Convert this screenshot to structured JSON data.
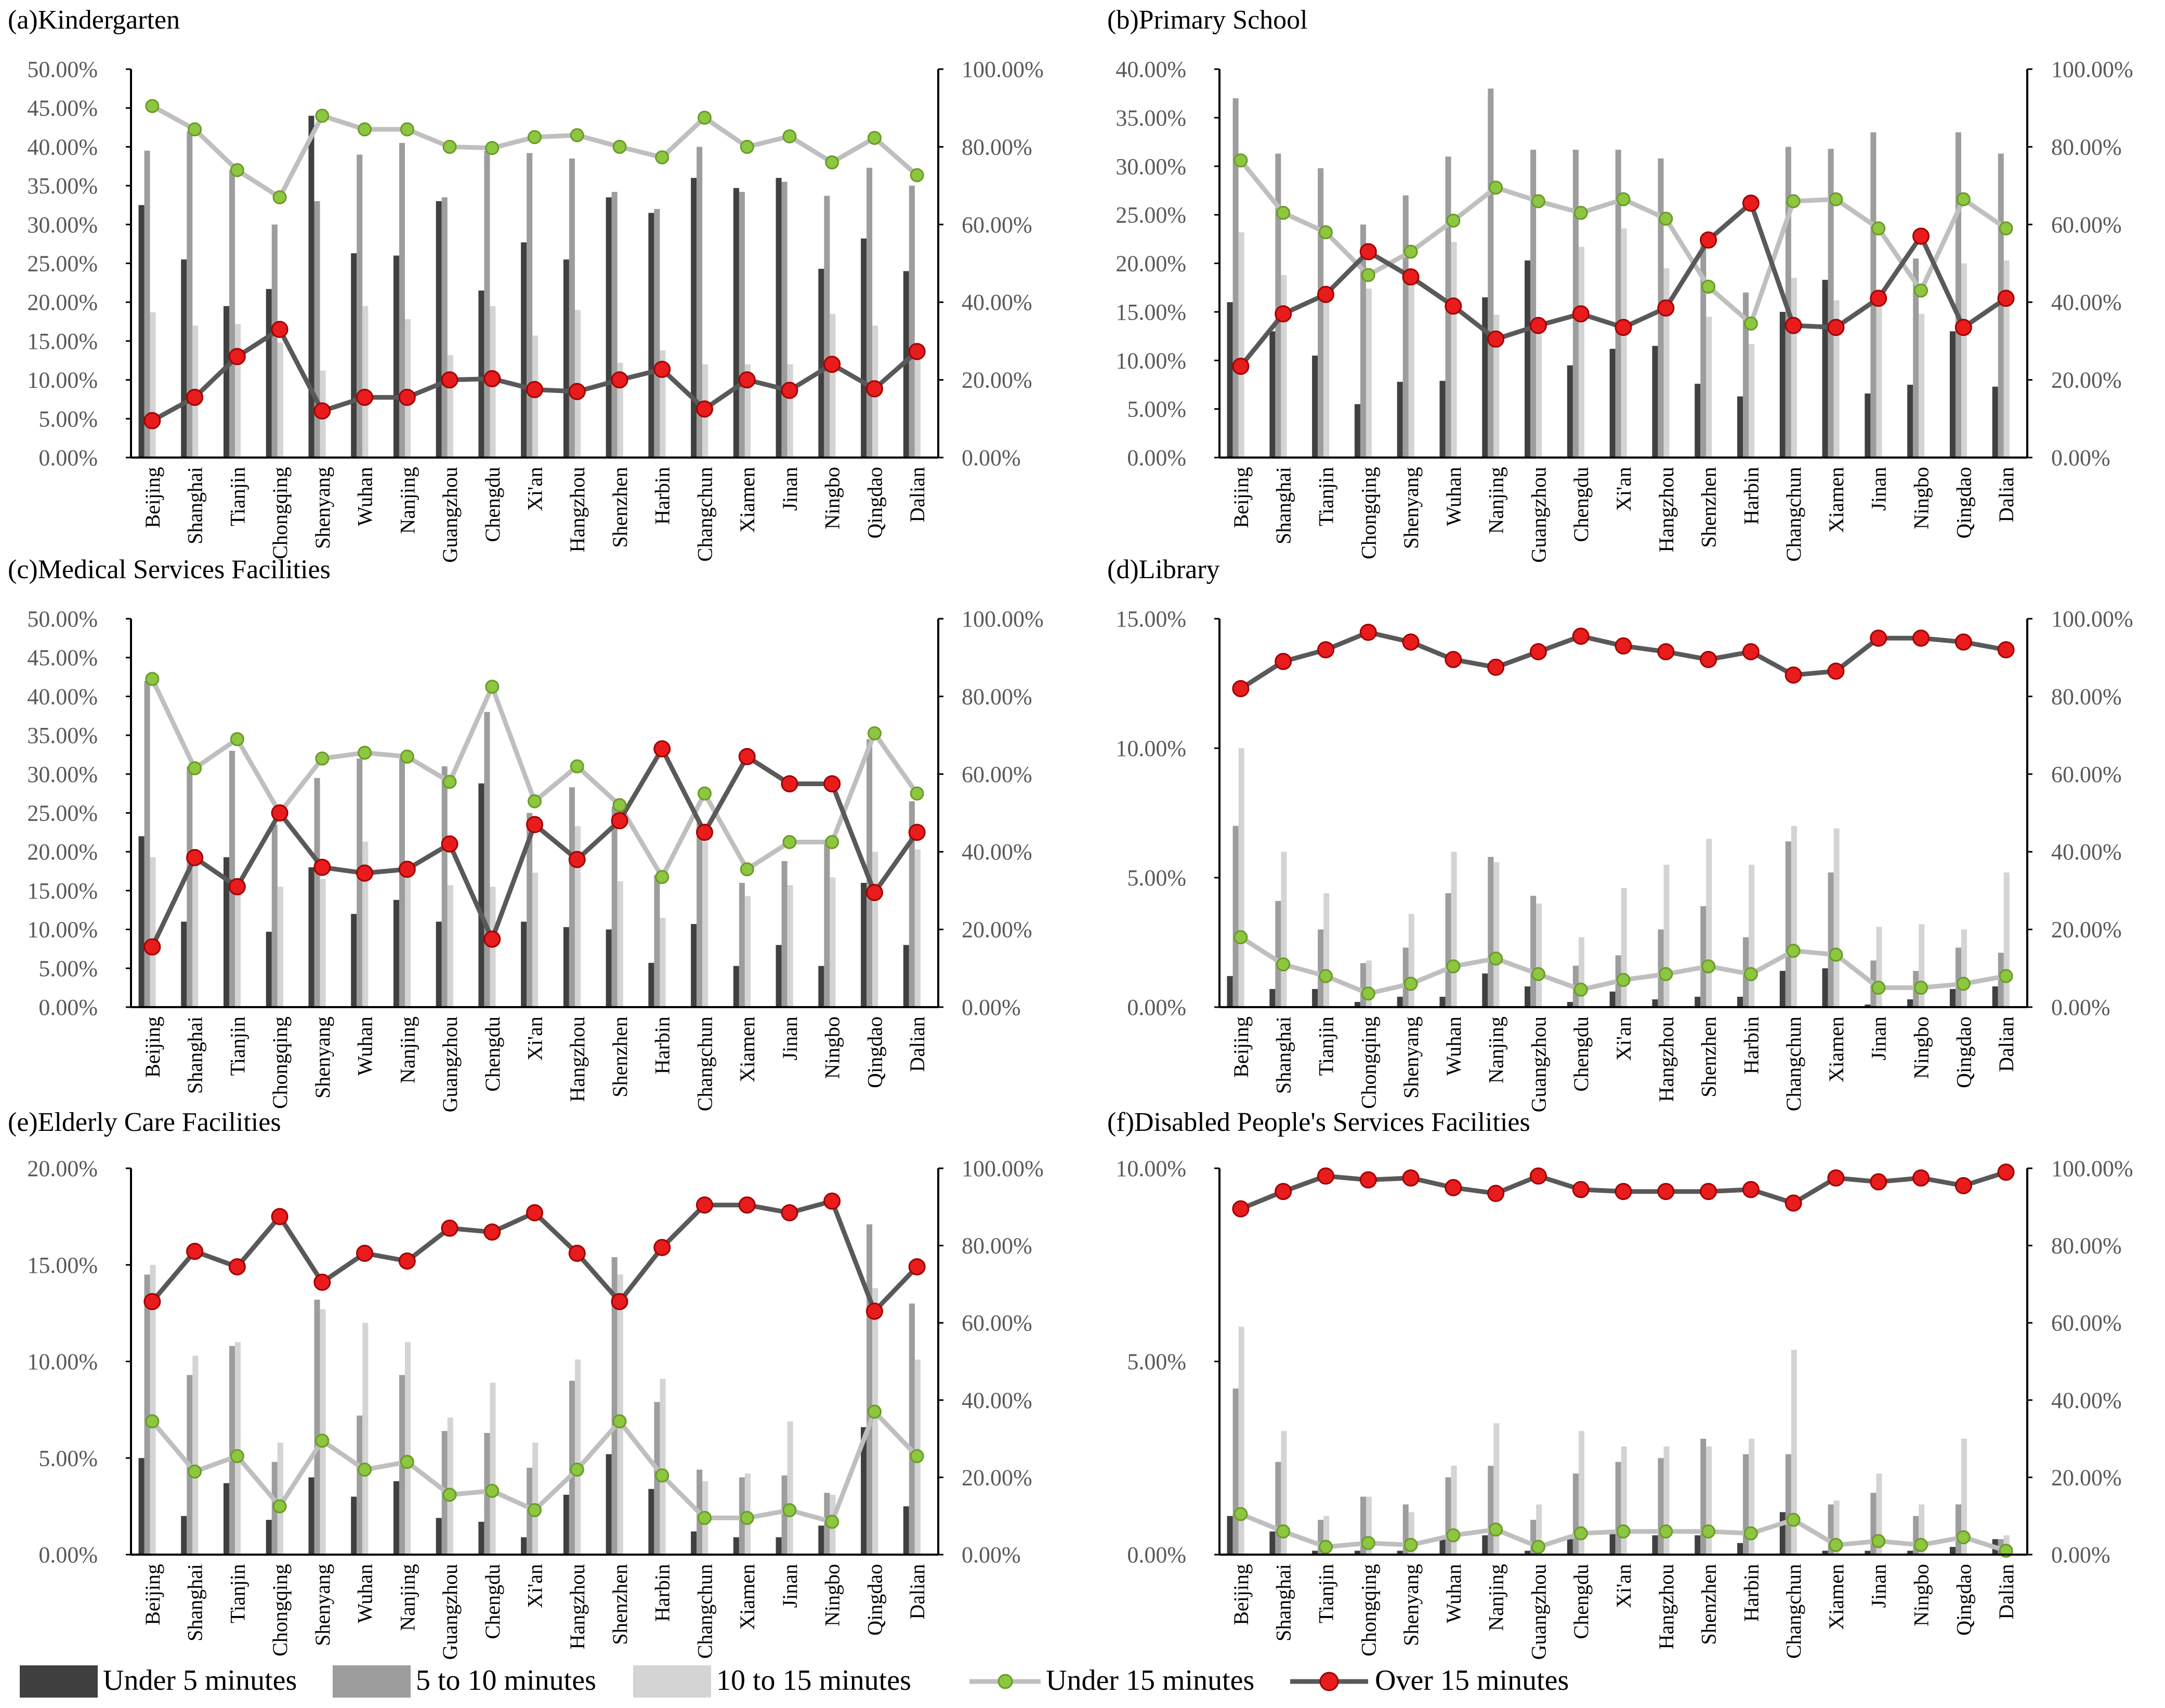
{
  "categories": [
    "Beijing",
    "Shanghai",
    "Tianjin",
    "Chongqing",
    "Shenyang",
    "Wuhan",
    "Nanjing",
    "Guangzhou",
    "Chengdu",
    "Xi'an",
    "Hangzhou",
    "Shenzhen",
    "Harbin",
    "Changchun",
    "Xiamen",
    "Jinan",
    "Ningbo",
    "Qingdao",
    "Dalian"
  ],
  "legend": {
    "under5": "Under 5 minutes",
    "five10": "5 to 10 minutes",
    "ten15": "10 to 15 minutes",
    "under15": "Under 15 minutes",
    "over15": "Over 15 minutes"
  },
  "colors": {
    "under5": "#404040",
    "five10": "#9d9d9d",
    "ten15": "#d4d4d4",
    "under15_line": "#bfbfbf",
    "under15_marker": "#8dc63f",
    "over15_line": "#595959",
    "over15_marker": "#e81c1c",
    "axis": "#000000",
    "tick_text": "#595959"
  },
  "chart_data": [
    {
      "type": "bar",
      "title": "(a)Kindergarten",
      "left_ylim": [
        0,
        0.5
      ],
      "left_ticks": [
        "0.00%",
        "5.00%",
        "10.00%",
        "15.00%",
        "20.00%",
        "25.00%",
        "30.00%",
        "35.00%",
        "40.00%",
        "45.00%",
        "50.00%"
      ],
      "right_ylim": [
        0,
        1.0
      ],
      "right_ticks": [
        "0.00%",
        "20.00%",
        "40.00%",
        "60.00%",
        "80.00%",
        "100.00%"
      ],
      "series": [
        {
          "name": "Under 5 minutes",
          "axis": "left",
          "values": [
            0.325,
            0.255,
            0.195,
            0.217,
            0.44,
            0.263,
            0.26,
            0.33,
            0.215,
            0.277,
            0.255,
            0.335,
            0.315,
            0.36,
            0.347,
            0.36,
            0.243,
            0.282,
            0.24
          ]
        },
        {
          "name": "5 to 10 minutes",
          "axis": "left",
          "values": [
            0.395,
            0.42,
            0.37,
            0.3,
            0.33,
            0.39,
            0.405,
            0.335,
            0.395,
            0.392,
            0.385,
            0.342,
            0.32,
            0.4,
            0.342,
            0.355,
            0.337,
            0.373,
            0.35
          ]
        },
        {
          "name": "10 to 15 minutes",
          "axis": "left",
          "values": [
            0.187,
            0.17,
            0.172,
            0.148,
            0.112,
            0.195,
            0.178,
            0.132,
            0.195,
            0.157,
            0.19,
            0.122,
            0.138,
            0.12,
            0.12,
            0.12,
            0.185,
            0.17,
            0.145
          ]
        },
        {
          "name": "Under 15 minutes",
          "axis": "right",
          "values": [
            0.905,
            0.845,
            0.74,
            0.67,
            0.88,
            0.845,
            0.845,
            0.8,
            0.797,
            0.825,
            0.83,
            0.8,
            0.773,
            0.875,
            0.8,
            0.827,
            0.76,
            0.823,
            0.727
          ]
        },
        {
          "name": "Over 15 minutes",
          "axis": "right",
          "values": [
            0.095,
            0.155,
            0.26,
            0.33,
            0.12,
            0.155,
            0.155,
            0.2,
            0.203,
            0.175,
            0.17,
            0.2,
            0.227,
            0.125,
            0.2,
            0.173,
            0.24,
            0.177,
            0.273
          ]
        }
      ]
    },
    {
      "type": "bar",
      "title": "(b)Primary School",
      "left_ylim": [
        0,
        0.4
      ],
      "left_ticks": [
        "0.00%",
        "5.00%",
        "10.00%",
        "15.00%",
        "20.00%",
        "25.00%",
        "30.00%",
        "35.00%",
        "40.00%"
      ],
      "right_ylim": [
        0,
        1.0
      ],
      "right_ticks": [
        "0.00%",
        "20.00%",
        "40.00%",
        "60.00%",
        "80.00%",
        "100.00%"
      ],
      "series": [
        {
          "name": "Under 5 minutes",
          "axis": "left",
          "values": [
            0.16,
            0.13,
            0.105,
            0.055,
            0.078,
            0.079,
            0.165,
            0.203,
            0.095,
            0.112,
            0.115,
            0.076,
            0.063,
            0.15,
            0.183,
            0.066,
            0.075,
            0.13,
            0.073
          ]
        },
        {
          "name": "5 to 10 minutes",
          "axis": "left",
          "values": [
            0.37,
            0.313,
            0.298,
            0.24,
            0.27,
            0.31,
            0.38,
            0.317,
            0.317,
            0.317,
            0.308,
            0.22,
            0.17,
            0.32,
            0.318,
            0.335,
            0.205,
            0.335,
            0.313
          ]
        },
        {
          "name": "10 to 15 minutes",
          "axis": "left",
          "values": [
            0.232,
            0.188,
            0.175,
            0.174,
            0.18,
            0.222,
            0.147,
            0.138,
            0.217,
            0.236,
            0.195,
            0.145,
            0.117,
            0.185,
            0.162,
            0.17,
            0.148,
            0.2,
            0.203
          ]
        },
        {
          "name": "Under 15 minutes",
          "axis": "right",
          "values": [
            0.765,
            0.63,
            0.58,
            0.47,
            0.53,
            0.61,
            0.695,
            0.66,
            0.63,
            0.665,
            0.615,
            0.44,
            0.345,
            0.66,
            0.665,
            0.59,
            0.43,
            0.665,
            0.59
          ]
        },
        {
          "name": "Over 15 minutes",
          "axis": "right",
          "values": [
            0.235,
            0.37,
            0.42,
            0.53,
            0.465,
            0.39,
            0.305,
            0.34,
            0.37,
            0.335,
            0.385,
            0.56,
            0.655,
            0.34,
            0.335,
            0.41,
            0.57,
            0.335,
            0.41
          ]
        }
      ]
    },
    {
      "type": "bar",
      "title": "(c)Medical Services Facilities",
      "left_ylim": [
        0,
        0.5
      ],
      "left_ticks": [
        "0.00%",
        "5.00%",
        "10.00%",
        "15.00%",
        "20.00%",
        "25.00%",
        "30.00%",
        "35.00%",
        "40.00%",
        "45.00%",
        "50.00%"
      ],
      "right_ylim": [
        0,
        1.0
      ],
      "right_ticks": [
        "0.00%",
        "20.00%",
        "40.00%",
        "60.00%",
        "80.00%",
        "100.00%"
      ],
      "series": [
        {
          "name": "Under 5 minutes",
          "axis": "left",
          "values": [
            0.22,
            0.11,
            0.193,
            0.097,
            0.18,
            0.12,
            0.138,
            0.11,
            0.288,
            0.11,
            0.103,
            0.1,
            0.057,
            0.107,
            0.053,
            0.08,
            0.053,
            0.16,
            0.08
          ]
        },
        {
          "name": "5 to 10 minutes",
          "axis": "left",
          "values": [
            0.42,
            0.31,
            0.33,
            0.235,
            0.295,
            0.32,
            0.32,
            0.31,
            0.38,
            0.25,
            0.283,
            0.258,
            0.17,
            0.238,
            0.16,
            0.188,
            0.215,
            0.345,
            0.265
          ]
        },
        {
          "name": "10 to 15 minutes",
          "axis": "left",
          "values": [
            0.193,
            0.183,
            0.165,
            0.155,
            0.165,
            0.213,
            0.18,
            0.157,
            0.155,
            0.173,
            0.233,
            0.162,
            0.115,
            0.213,
            0.143,
            0.157,
            0.167,
            0.2,
            0.203
          ]
        },
        {
          "name": "Under 15 minutes",
          "axis": "right",
          "values": [
            0.845,
            0.615,
            0.69,
            0.5,
            0.64,
            0.655,
            0.645,
            0.58,
            0.825,
            0.53,
            0.62,
            0.52,
            0.335,
            0.55,
            0.355,
            0.425,
            0.425,
            0.705,
            0.55
          ]
        },
        {
          "name": "Over 15 minutes",
          "axis": "right",
          "values": [
            0.155,
            0.385,
            0.31,
            0.5,
            0.36,
            0.345,
            0.355,
            0.42,
            0.175,
            0.47,
            0.38,
            0.48,
            0.665,
            0.45,
            0.645,
            0.575,
            0.575,
            0.295,
            0.45
          ]
        }
      ]
    },
    {
      "type": "bar",
      "title": "(d)Library",
      "left_ylim": [
        0,
        0.15
      ],
      "left_ticks": [
        "0.00%",
        "5.00%",
        "10.00%",
        "15.00%"
      ],
      "right_ylim": [
        0,
        1.0
      ],
      "right_ticks": [
        "0.00%",
        "20.00%",
        "40.00%",
        "60.00%",
        "80.00%",
        "100.00%"
      ],
      "series": [
        {
          "name": "Under 5 minutes",
          "axis": "left",
          "values": [
            0.012,
            0.007,
            0.007,
            0.002,
            0.004,
            0.004,
            0.013,
            0.008,
            0.002,
            0.006,
            0.003,
            0.004,
            0.004,
            0.014,
            0.015,
            0.001,
            0.003,
            0.007,
            0.008
          ]
        },
        {
          "name": "5 to 10 minutes",
          "axis": "left",
          "values": [
            0.07,
            0.041,
            0.03,
            0.017,
            0.023,
            0.044,
            0.058,
            0.043,
            0.016,
            0.02,
            0.03,
            0.039,
            0.027,
            0.064,
            0.052,
            0.018,
            0.014,
            0.023,
            0.021
          ]
        },
        {
          "name": "10 to 15 minutes",
          "axis": "left",
          "values": [
            0.1,
            0.06,
            0.044,
            0.018,
            0.036,
            0.06,
            0.056,
            0.04,
            0.027,
            0.046,
            0.055,
            0.065,
            0.055,
            0.07,
            0.069,
            0.031,
            0.032,
            0.03,
            0.052
          ]
        },
        {
          "name": "Under 15 minutes",
          "axis": "right",
          "values": [
            0.18,
            0.11,
            0.08,
            0.035,
            0.06,
            0.105,
            0.125,
            0.085,
            0.045,
            0.07,
            0.085,
            0.105,
            0.085,
            0.145,
            0.135,
            0.05,
            0.05,
            0.06,
            0.08
          ]
        },
        {
          "name": "Over 15 minutes",
          "axis": "right",
          "values": [
            0.82,
            0.89,
            0.92,
            0.965,
            0.94,
            0.895,
            0.875,
            0.915,
            0.955,
            0.93,
            0.915,
            0.895,
            0.915,
            0.855,
            0.865,
            0.95,
            0.95,
            0.94,
            0.92
          ]
        }
      ]
    },
    {
      "type": "bar",
      "title": "(e)Elderly Care Facilities",
      "left_ylim": [
        0,
        0.2
      ],
      "left_ticks": [
        "0.00%",
        "5.00%",
        "10.00%",
        "15.00%",
        "20.00%"
      ],
      "right_ylim": [
        0,
        1.0
      ],
      "right_ticks": [
        "0.00%",
        "20.00%",
        "40.00%",
        "60.00%",
        "80.00%",
        "100.00%"
      ],
      "series": [
        {
          "name": "Under 5 minutes",
          "axis": "left",
          "values": [
            0.05,
            0.02,
            0.037,
            0.018,
            0.04,
            0.03,
            0.038,
            0.019,
            0.017,
            0.009,
            0.031,
            0.052,
            0.034,
            0.012,
            0.009,
            0.009,
            0.015,
            0.066,
            0.025
          ]
        },
        {
          "name": "5 to 10 minutes",
          "axis": "left",
          "values": [
            0.145,
            0.093,
            0.108,
            0.048,
            0.132,
            0.072,
            0.093,
            0.064,
            0.063,
            0.045,
            0.09,
            0.154,
            0.079,
            0.044,
            0.04,
            0.041,
            0.032,
            0.171,
            0.13
          ]
        },
        {
          "name": "10 to 15 minutes",
          "axis": "left",
          "values": [
            0.15,
            0.103,
            0.11,
            0.058,
            0.127,
            0.12,
            0.11,
            0.071,
            0.089,
            0.058,
            0.101,
            0.145,
            0.091,
            0.038,
            0.042,
            0.069,
            0.031,
            0.138,
            0.101
          ]
        },
        {
          "name": "Under 15 minutes",
          "axis": "right",
          "values": [
            0.345,
            0.215,
            0.255,
            0.125,
            0.295,
            0.22,
            0.24,
            0.155,
            0.165,
            0.115,
            0.22,
            0.345,
            0.205,
            0.095,
            0.095,
            0.115,
            0.085,
            0.37,
            0.255
          ]
        },
        {
          "name": "Over 15 minutes",
          "axis": "right",
          "values": [
            0.655,
            0.785,
            0.745,
            0.875,
            0.705,
            0.78,
            0.76,
            0.845,
            0.835,
            0.885,
            0.78,
            0.655,
            0.795,
            0.905,
            0.905,
            0.885,
            0.915,
            0.63,
            0.745
          ]
        }
      ]
    },
    {
      "type": "bar",
      "title": "(f)Disabled People's Services Facilities",
      "left_ylim": [
        0,
        0.1
      ],
      "left_ticks": [
        "0.00%",
        "5.00%",
        "10.00%"
      ],
      "right_ylim": [
        0,
        1.0
      ],
      "right_ticks": [
        "0.00%",
        "20.00%",
        "40.00%",
        "60.00%",
        "80.00%",
        "100.00%"
      ],
      "series": [
        {
          "name": "Under 5 minutes",
          "axis": "left",
          "values": [
            0.01,
            0.006,
            0.001,
            0.001,
            0.001,
            0.004,
            0.005,
            0.001,
            0.004,
            0.006,
            0.005,
            0.005,
            0.003,
            0.011,
            0.001,
            0.001,
            0.001,
            0.002,
            0.004
          ]
        },
        {
          "name": "5 to 10 minutes",
          "axis": "left",
          "values": [
            0.043,
            0.024,
            0.009,
            0.015,
            0.013,
            0.02,
            0.023,
            0.009,
            0.021,
            0.024,
            0.025,
            0.03,
            0.026,
            0.026,
            0.013,
            0.016,
            0.01,
            0.013,
            0.004
          ]
        },
        {
          "name": "10 to 15 minutes",
          "axis": "left",
          "values": [
            0.059,
            0.032,
            0.01,
            0.015,
            0.011,
            0.023,
            0.034,
            0.013,
            0.032,
            0.028,
            0.028,
            0.028,
            0.03,
            0.053,
            0.014,
            0.021,
            0.013,
            0.03,
            0.005
          ]
        },
        {
          "name": "Under 15 minutes",
          "axis": "right",
          "values": [
            0.105,
            0.06,
            0.02,
            0.03,
            0.025,
            0.05,
            0.065,
            0.02,
            0.055,
            0.06,
            0.06,
            0.06,
            0.055,
            0.09,
            0.025,
            0.035,
            0.025,
            0.045,
            0.01
          ]
        },
        {
          "name": "Over 15 minutes",
          "axis": "right",
          "values": [
            0.895,
            0.94,
            0.98,
            0.97,
            0.975,
            0.95,
            0.935,
            0.98,
            0.945,
            0.94,
            0.94,
            0.94,
            0.945,
            0.91,
            0.975,
            0.965,
            0.975,
            0.955,
            0.99
          ]
        }
      ]
    }
  ]
}
